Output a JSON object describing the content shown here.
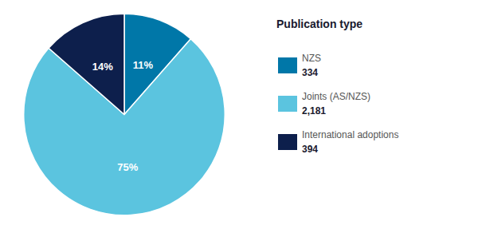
{
  "chart_data": {
    "type": "pie",
    "title": "Publication type",
    "categories": [
      "NZS",
      "Joints (AS/NZS)",
      "International adoptions"
    ],
    "values": [
      334,
      2181,
      394
    ],
    "value_labels": [
      "334",
      "2,181",
      "394"
    ],
    "shares": [
      11,
      75,
      14
    ],
    "share_labels": [
      "11%",
      "75%",
      "14%"
    ],
    "colors": [
      "#0077a8",
      "#5bc4df",
      "#0d1f4c"
    ],
    "data_labels": true,
    "legend": "right"
  }
}
